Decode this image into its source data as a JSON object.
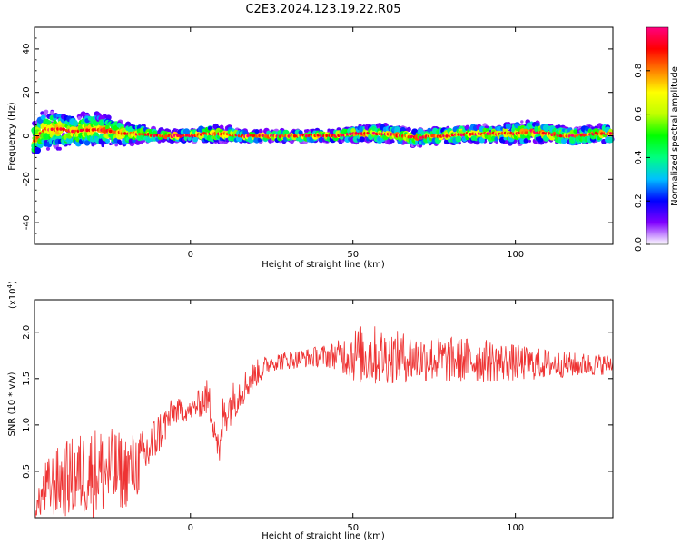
{
  "title": "C2E3.2024.123.19.22.R05",
  "chart_data": [
    {
      "type": "heatmap",
      "xlabel": "Height of straight line (km)",
      "ylabel": "Frequency (Hz)",
      "xlim": [
        -48,
        130
      ],
      "ylim": [
        -50,
        50
      ],
      "x_ticks": [
        0,
        50,
        100
      ],
      "y_ticks": [
        -40,
        -20,
        0,
        20,
        40
      ],
      "ridge_profile": {
        "x": [
          -48,
          -45,
          -40,
          -35,
          -30,
          -25,
          -20,
          -15,
          -10,
          -5,
          0,
          5,
          10,
          15,
          20,
          25,
          30,
          35,
          40,
          45,
          50,
          55,
          60,
          65,
          70,
          75,
          80,
          85,
          90,
          95,
          100,
          105,
          110,
          115,
          120,
          125,
          130
        ],
        "freq": [
          -2,
          3,
          3,
          2,
          3,
          2,
          1,
          1,
          0,
          0,
          0,
          1,
          1,
          0,
          0,
          0,
          0,
          0,
          0,
          0,
          1,
          1,
          1,
          0,
          -1,
          0,
          0,
          1,
          1,
          1,
          1,
          2,
          1,
          0,
          0,
          1,
          1
        ],
        "spread_hz": [
          6,
          7,
          7,
          6,
          6,
          5,
          4,
          3,
          2,
          2,
          2,
          3,
          3,
          2,
          2,
          2,
          2,
          2,
          2,
          2,
          3,
          3,
          3,
          3,
          3,
          3,
          3,
          3,
          3,
          3,
          4,
          4,
          3,
          3,
          3,
          3,
          3
        ]
      },
      "colorbar": {
        "label": "Normalized spectral amplitude",
        "range": [
          0,
          1
        ],
        "ticks": [
          "0.0",
          "0.2",
          "0.4",
          "0.6",
          "0.8"
        ],
        "colors": [
          "#ffffff",
          "#8000ff",
          "#0000ff",
          "#00c0ff",
          "#00ff80",
          "#00ff00",
          "#c0ff00",
          "#ffff00",
          "#ff8000",
          "#ff0000",
          "#ff0080"
        ]
      }
    },
    {
      "type": "line",
      "xlabel": "Height of straight line (km)",
      "ylabel": "SNR (10 * v/v)",
      "multiplier": "(x10",
      "multiplier_exp": "4",
      "multiplier_close": ")",
      "xlim": [
        -48,
        130
      ],
      "ylim": [
        0,
        23500
      ],
      "x_ticks": [
        0,
        50,
        100
      ],
      "y_tick_values": [
        5000,
        10000,
        15000,
        20000
      ],
      "y_tick_labels": [
        "0.5",
        "1.0",
        "1.5",
        "2.0"
      ],
      "color": "#ee3333",
      "envelope": {
        "x": [
          -48,
          -45,
          -40,
          -35,
          -30,
          -25,
          -20,
          -15,
          -10,
          -5,
          0,
          5,
          7,
          9,
          10,
          15,
          20,
          25,
          30,
          35,
          40,
          45,
          50,
          55,
          60,
          65,
          70,
          75,
          80,
          85,
          90,
          95,
          100,
          105,
          110,
          115,
          120,
          125,
          130
        ],
        "mean": [
          500,
          3000,
          4000,
          4500,
          5000,
          5000,
          5000,
          6000,
          9000,
          11500,
          11500,
          13000,
          11000,
          6500,
          11000,
          13500,
          15500,
          16800,
          17000,
          17200,
          17400,
          17500,
          17600,
          17500,
          17400,
          17300,
          17200,
          17100,
          17000,
          17000,
          16900,
          16800,
          16700,
          16600,
          16600,
          16500,
          16500,
          16500,
          16600
        ],
        "amplitude": [
          500,
          3000,
          4000,
          4500,
          5000,
          4800,
          4000,
          3500,
          2500,
          1500,
          1000,
          2000,
          2500,
          1500,
          2500,
          2000,
          1500,
          1000,
          1000,
          1000,
          1200,
          1500,
          3000,
          3500,
          3000,
          2800,
          2600,
          2500,
          2500,
          2500,
          2400,
          2200,
          2000,
          1800,
          1600,
          1400,
          1300,
          1200,
          1000
        ]
      }
    }
  ]
}
